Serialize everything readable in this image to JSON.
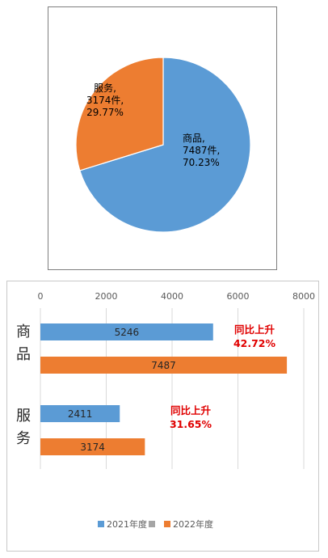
{
  "chart_data": [
    {
      "type": "pie",
      "slices": [
        {
          "name": "商品",
          "value": 7487,
          "percent": 70.23,
          "color": "#5b9bd5",
          "label_lines": [
            "商品,",
            "7487件,",
            "70.23%"
          ]
        },
        {
          "name": "服务",
          "value": 3174,
          "percent": 29.77,
          "color": "#ed7d31",
          "label_lines": [
            "服务,",
            "3174件,",
            "29.77%"
          ]
        }
      ]
    },
    {
      "type": "bar",
      "orientation": "horizontal",
      "categories": [
        "商品",
        "服务"
      ],
      "series": [
        {
          "name": "2021年度",
          "values": [
            5246,
            2411
          ],
          "color": "#5b9bd5"
        },
        {
          "name": "2022年度",
          "values": [
            7487,
            3174
          ],
          "color": "#ed7d31"
        }
      ],
      "xlim": [
        0,
        8000
      ],
      "xticks": [
        "0",
        "2000",
        "4000",
        "6000",
        "8000"
      ],
      "grid": true,
      "annotations": [
        {
          "lines": [
            "同比上升",
            "42.72%"
          ],
          "color": "#e00000"
        },
        {
          "lines": [
            "同比上升",
            "31.65%"
          ],
          "color": "#e00000"
        }
      ],
      "legend": {
        "placement": "bottom",
        "items": [
          {
            "label": "2021年度",
            "color": "#5b9bd5"
          },
          {
            "label": "",
            "color": "#a5a5a5"
          },
          {
            "label": "2022年度",
            "color": "#ed7d31"
          }
        ]
      }
    }
  ]
}
